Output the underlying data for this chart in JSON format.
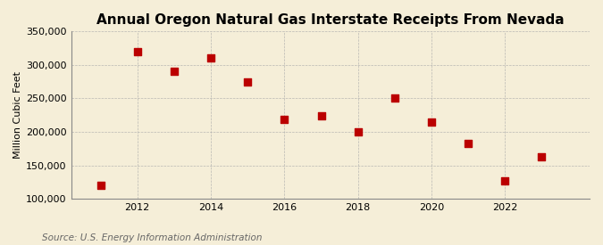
{
  "title": "Annual Oregon Natural Gas Interstate Receipts From Nevada",
  "ylabel": "Million Cubic Feet",
  "source": "Source: U.S. Energy Information Administration",
  "background_color": "#f5eed8",
  "years": [
    2011,
    2012,
    2013,
    2014,
    2015,
    2016,
    2017,
    2018,
    2019,
    2020,
    2021,
    2022,
    2023
  ],
  "values": [
    120000,
    320000,
    290000,
    310000,
    275000,
    218000,
    224000,
    200000,
    251000,
    215000,
    183000,
    127000,
    163000
  ],
  "marker_color": "#bb0000",
  "marker_size": 6,
  "ylim": [
    100000,
    350000
  ],
  "yticks": [
    100000,
    150000,
    200000,
    250000,
    300000,
    350000
  ],
  "xticks": [
    2012,
    2014,
    2016,
    2018,
    2020,
    2022
  ],
  "xlim": [
    2010.2,
    2024.3
  ],
  "grid_color": "#aaaaaa",
  "title_fontsize": 11,
  "axis_label_fontsize": 8,
  "tick_fontsize": 8,
  "source_fontsize": 7.5
}
